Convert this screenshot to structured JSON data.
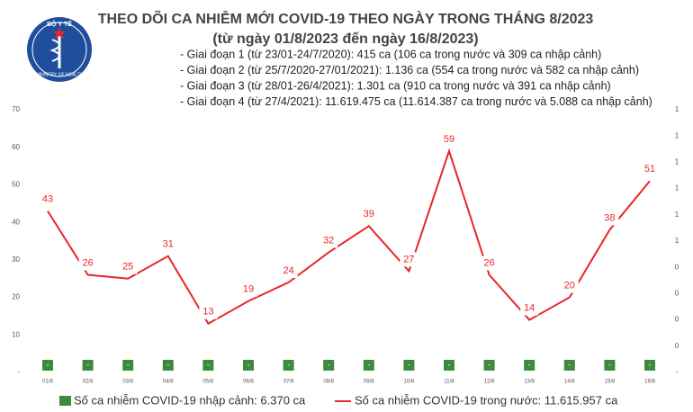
{
  "chart_data": {
    "type": "line",
    "logo_top": "BỘ Y TẾ",
    "logo_bottom": "MINISTRY OF HEALTH",
    "title": "THEO DÕI CA NHIỄM MỚI COVID-19 THEO NGÀY TRONG THÁNG 8/2023",
    "subtitle": "(từ ngày 01/8/2023 đến ngày 16/8/2023)",
    "notes": [
      "- Giai đoạn 1 (từ 23/01-24/7/2020): 415 ca (106 ca trong nước và 309 ca nhập cảnh)",
      "- Giai đoạn 2 (từ 25/7/2020-27/01/2021): 1.136 ca (554 ca trong nước và 582 ca nhập cảnh)",
      "- Giai đoạn 3 (từ 28/01-26/4/2021): 1.301 ca (910 ca trong nước và 391 ca nhập cảnh)",
      "- Giai đoạn 4 (từ 27/4/2021): 11.619.475 ca (11.614.387 ca trong nước và 5.088 ca nhập cảnh)"
    ],
    "categories": [
      "01/8",
      "02/8",
      "03/8",
      "04/8",
      "05/8",
      "06/8",
      "07/8",
      "08/8",
      "09/8",
      "10/8",
      "11/8",
      "12/8",
      "13/8",
      "14/8",
      "15/8",
      "16/8"
    ],
    "series": [
      {
        "name": "Số ca nhiễm COVID-19 nhập cảnh: 6.370 ca",
        "color": "#3b8a3e",
        "axis": "y2",
        "type": "bar",
        "values": [
          0,
          0,
          0,
          0,
          0,
          0,
          0,
          0,
          0,
          0,
          0,
          0,
          0,
          0,
          0,
          0
        ],
        "value_labels": [
          "-",
          "-",
          "-",
          "-",
          "-",
          "-",
          "-",
          "-",
          "-",
          "-",
          "-",
          "-",
          "-",
          "-",
          "-",
          "-"
        ]
      },
      {
        "name": "Số ca nhiễm COVID-19 trong nước: 11.615.957 ca",
        "color": "#e8262a",
        "type": "line",
        "values": [
          43,
          26,
          25,
          31,
          13,
          19,
          24,
          32,
          39,
          27,
          59,
          26,
          14,
          20,
          38,
          51
        ]
      }
    ],
    "ylim": [
      0,
      70
    ],
    "yticks": [
      {
        "value": 0,
        "label": "-"
      },
      10,
      20,
      30,
      40,
      50,
      60,
      70
    ],
    "y2lim": [
      0,
      1
    ],
    "y2ticks": [
      {
        "value": 0,
        "label": "-"
      },
      {
        "value": 0.1,
        "label": "0"
      },
      {
        "value": 0.2,
        "label": "0"
      },
      {
        "value": 0.3,
        "label": "0"
      },
      {
        "value": 0.4,
        "label": "0"
      },
      {
        "value": 0.5,
        "label": "1"
      },
      {
        "value": 0.6,
        "label": "1"
      },
      {
        "value": 0.7,
        "label": "1"
      },
      {
        "value": 0.8,
        "label": "1"
      },
      {
        "value": 0.9,
        "label": "1"
      },
      1
    ]
  }
}
